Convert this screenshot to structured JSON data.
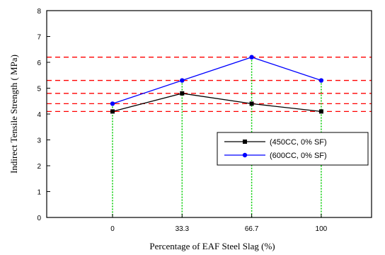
{
  "chart_data": {
    "type": "line",
    "categories": [
      "0",
      "33.3",
      "66.7",
      "100"
    ],
    "x": [
      0,
      33.3,
      66.7,
      100
    ],
    "xlabel": "Percentage of EAF Steel Slag (%)",
    "ylabel": "Indirect Tensile Strength ( MPa)",
    "ylim": [
      0,
      8
    ],
    "yticks": [
      "0",
      "1",
      "2",
      "3",
      "4",
      "5",
      "6",
      "7",
      "8"
    ],
    "legend_position": "right",
    "grid": false,
    "series": [
      {
        "name": "(450CC, 0% SF)",
        "values": [
          4.1,
          4.8,
          4.4,
          4.1
        ],
        "color": "#000000",
        "marker": "square"
      },
      {
        "name": "(600CC, 0% SF)",
        "values": [
          4.4,
          5.3,
          6.2,
          5.3
        ],
        "color": "#0000ff",
        "marker": "circle"
      }
    ],
    "reference_lines": [
      4.1,
      4.4,
      4.8,
      5.3,
      6.2
    ],
    "reference_color": "#ff0000",
    "drop_line_color": "#00cc00"
  }
}
